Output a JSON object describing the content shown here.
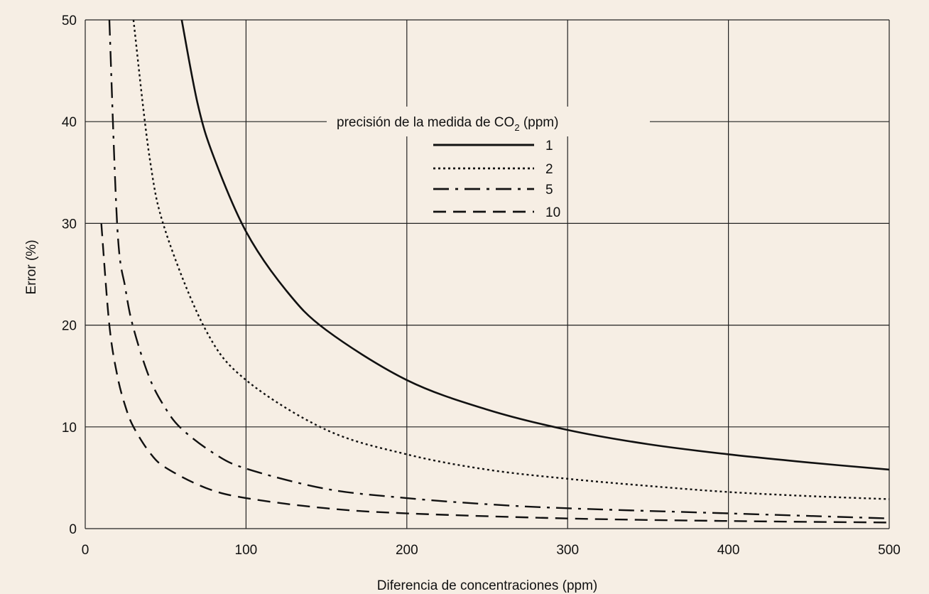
{
  "chart_data": {
    "type": "line",
    "title": "",
    "xlabel": "Diferencia de concentraciones (ppm)",
    "ylabel": "Error (%)",
    "xlim": [
      0,
      500
    ],
    "ylim": [
      0,
      50
    ],
    "x_ticks": [
      0,
      100,
      200,
      300,
      400,
      500
    ],
    "y_ticks": [
      0,
      10,
      20,
      30,
      40,
      50
    ],
    "grid": true,
    "background_color": "#f6eee4",
    "line_color": "#111111",
    "legend": {
      "title_prefix": "precisión de la medida de CO",
      "title_subscript": "2",
      "title_suffix": " (ppm)",
      "placement": "top-center"
    },
    "series": [
      {
        "name": "1",
        "dash": "solid",
        "x": [
          60,
          70,
          80,
          100,
          125,
          150,
          200,
          250,
          300,
          350,
          400,
          450,
          500
        ],
        "y": [
          50,
          41.7,
          36.5,
          29.2,
          23.4,
          19.5,
          14.6,
          11.7,
          9.7,
          8.3,
          7.3,
          6.5,
          5.8
        ]
      },
      {
        "name": "2",
        "dash": "dotted",
        "x": [
          30,
          40,
          50,
          75,
          100,
          150,
          200,
          250,
          300,
          350,
          400,
          450,
          500
        ],
        "y": [
          50,
          36.5,
          29.2,
          19.5,
          14.6,
          9.7,
          7.3,
          5.8,
          4.9,
          4.2,
          3.6,
          3.2,
          2.9
        ]
      },
      {
        "name": "5",
        "dash": "dash-dot",
        "x": [
          15,
          20,
          25,
          30,
          40,
          50,
          60,
          80,
          100,
          150,
          200,
          250,
          300,
          400,
          500
        ],
        "y": [
          50,
          29.5,
          23.6,
          19.7,
          14.8,
          11.8,
          9.8,
          7.4,
          5.9,
          3.9,
          3.0,
          2.4,
          2.0,
          1.5,
          1.0
        ]
      },
      {
        "name": "10",
        "dash": "dashed",
        "x": [
          10,
          15,
          20,
          25,
          30,
          40,
          50,
          75,
          100,
          150,
          200,
          300,
          400,
          500
        ],
        "y": [
          30,
          20.0,
          15.0,
          12.0,
          10.0,
          7.5,
          6.0,
          4.0,
          3.0,
          2.0,
          1.5,
          1.0,
          0.75,
          0.6
        ]
      }
    ]
  }
}
